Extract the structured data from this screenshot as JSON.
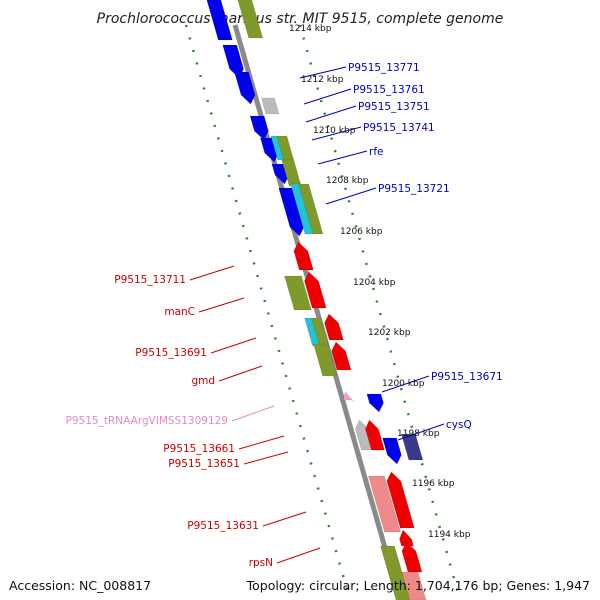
{
  "title": "Prochlorococcus marinus str. MIT 9515, complete genome",
  "footer": {
    "accession": "Accession: NC_008817",
    "topology": "Topology: circular; Length: 1,704,176 bp; Genes: 1,947"
  },
  "colors": {
    "forward": "#0000ee",
    "reverse": "#ee0000",
    "olive": "#7f9a2a",
    "cyan": "#22c4d4",
    "gray": "#bbbbbb",
    "pink_rna": "#f29ac9",
    "light_red": "#f08a8a",
    "indigo": "#3a3a8c",
    "label_blue": "#0000bb",
    "label_red": "#cc0000",
    "label_pink": "#e48ac0",
    "ruler_green": "#2a8a2a",
    "backbone": "#8a8a8a"
  },
  "kbp_ticks": [
    "1214 kbp",
    "1212 kbp",
    "1210 kbp",
    "1208 kbp",
    "1206 kbp",
    "1204 kbp",
    "1202 kbp",
    "1200 kbp",
    "1198 kbp",
    "1196 kbp",
    "1194 kbp"
  ],
  "right_labels": [
    "P9515_13771",
    "P9515_13761",
    "P9515_13751",
    "P9515_13741",
    "rfe",
    "P9515_13721",
    "P9515_13671",
    "cysQ"
  ],
  "left_labels": [
    "P9515_13711",
    "manC",
    "P9515_13691",
    "gmd",
    "P9515_tRNAArgVIMSS1309129",
    "P9515_13661",
    "P9515_13651",
    "P9515_13631",
    "rpsN"
  ]
}
